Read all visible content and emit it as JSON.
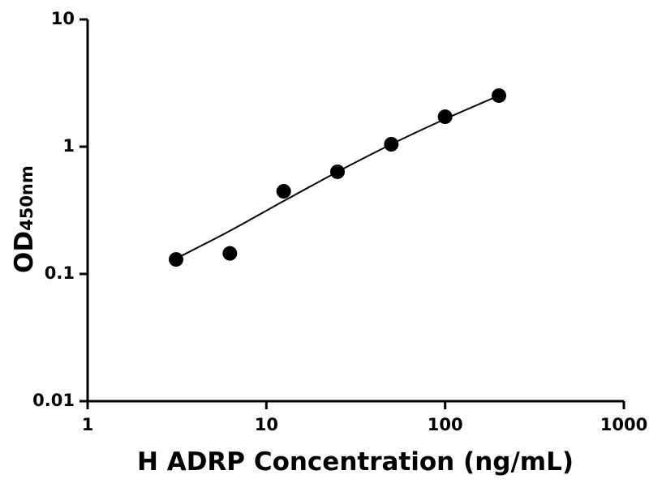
{
  "chart_data": {
    "type": "scatter",
    "x_label": "H ADRP Concentration (ng/mL)",
    "y_label": "OD",
    "y_label_subscript": "450nm",
    "x": [
      3.125,
      6.25,
      12.5,
      25,
      50,
      100,
      200
    ],
    "values": [
      0.13,
      0.145,
      0.446,
      0.635,
      1.045,
      1.72,
      2.52
    ],
    "color": "#000000",
    "curve": {
      "x": [
        3.125,
        6.25,
        12.5,
        25,
        50,
        100,
        200
      ],
      "y": [
        0.132,
        0.218,
        0.374,
        0.635,
        1.045,
        1.65,
        2.52
      ]
    },
    "xlim": [
      1,
      1000
    ],
    "xticks": [
      1,
      10,
      100,
      1000
    ],
    "ylim": [
      0.01,
      10
    ],
    "yticks": [
      0.01,
      0.1,
      1,
      10
    ],
    "log_x": true,
    "log_y": true,
    "grid": false
  }
}
